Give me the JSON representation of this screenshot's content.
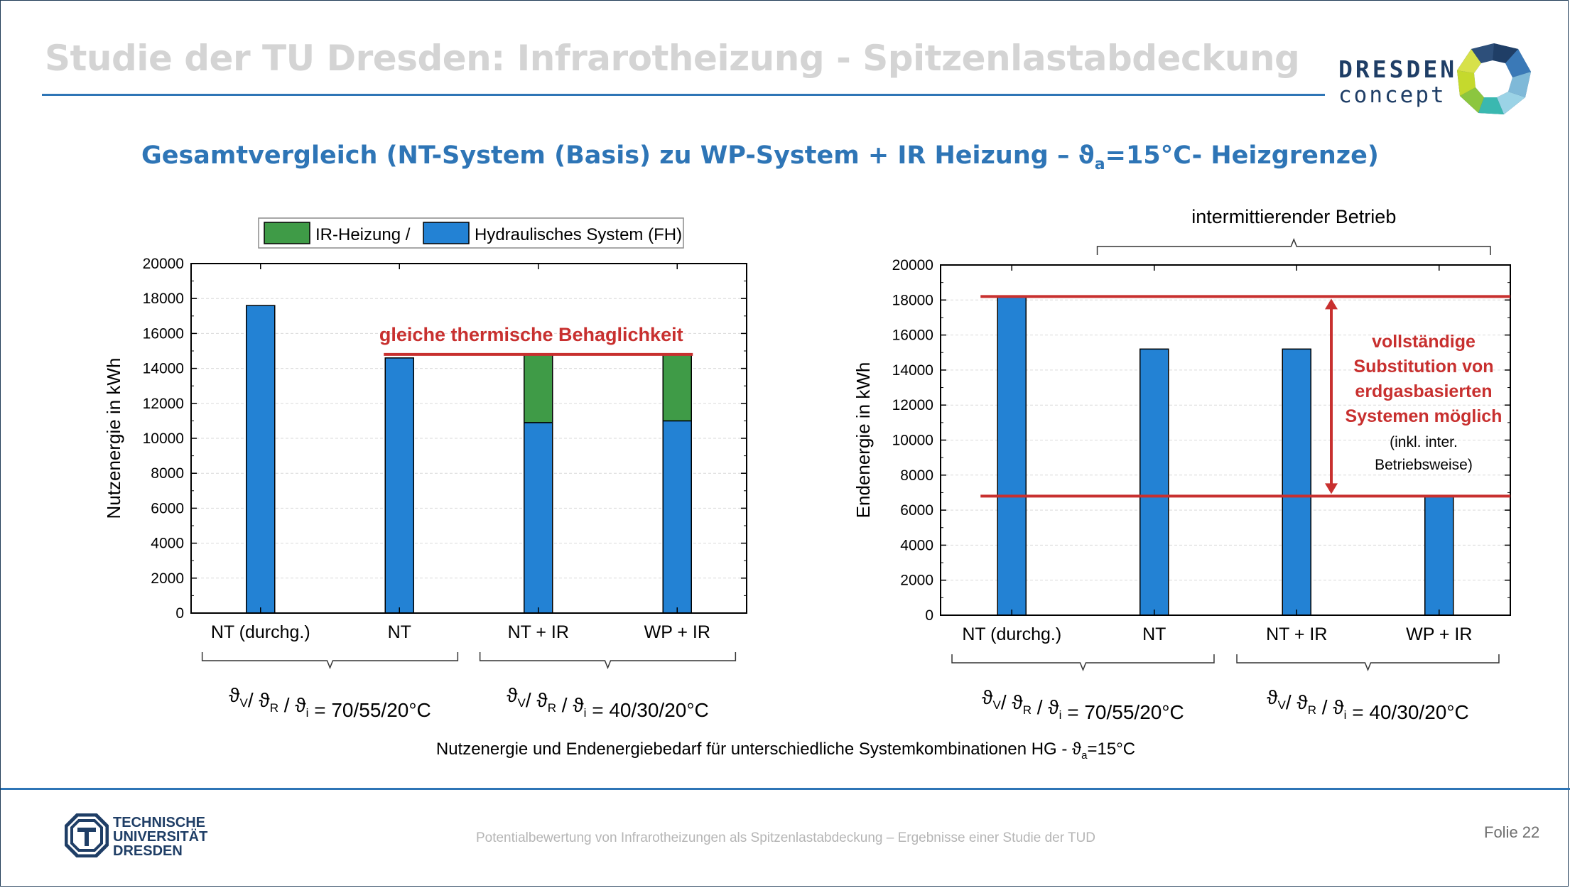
{
  "header": {
    "title": "Studie der TU Dresden: Infrarotheizung - Spitzenlastabdeckung"
  },
  "logo": {
    "line1": "DRESDEN",
    "line2": "concept"
  },
  "subtitle": {
    "main": "Gesamtvergleich (NT-System (Basis) zu WP-System + IR Heizung –  ϑ",
    "sub": "a",
    "tail": "=15°C- Heizgrenze)"
  },
  "colors": {
    "blue_bar": "#2382d4",
    "green_bar": "#3f9b47",
    "red_line": "#c8302f",
    "accent": "#2e75b6"
  },
  "chart_data": [
    {
      "type": "bar",
      "stacked": true,
      "categories": [
        "NT (durchg.)",
        "NT",
        "NT + IR",
        "WP + IR"
      ],
      "series": [
        {
          "name": "Hydraulisches System (FH)",
          "color": "#2382d4",
          "values": [
            17600,
            14600,
            10900,
            11000
          ]
        },
        {
          "name": "IR-Heizung /",
          "color": "#3f9b47",
          "values": [
            0,
            0,
            3900,
            3800
          ]
        }
      ],
      "ylabel": "Nutzenergie in kWh",
      "ylim": [
        0,
        20000
      ],
      "yticks": [
        0,
        2000,
        4000,
        6000,
        8000,
        10000,
        12000,
        14000,
        16000,
        18000,
        20000
      ],
      "ytick_labels": [
        "0",
        "2000",
        "4000",
        "6000",
        "8000",
        "10000",
        "12000",
        "14000",
        "16000",
        "18000",
        "20000"
      ],
      "grid": true,
      "legend": "top",
      "annotation": {
        "text": "gleiche thermische  Behaglichkeit",
        "line_y": 14800
      },
      "groups": [
        {
          "label": "ϑ",
          "parts": [
            "V",
            "R",
            "i"
          ],
          "value": "= 70/55/20°C"
        },
        {
          "label": "ϑ",
          "parts": [
            "V",
            "R",
            "i"
          ],
          "value": "= 40/30/20°C"
        }
      ]
    },
    {
      "type": "bar",
      "categories": [
        "NT (durchg.)",
        "NT",
        "NT + IR",
        "WP + IR"
      ],
      "series": [
        {
          "name": "Hydraulisches System (FH)",
          "color": "#2382d4",
          "values": [
            18200,
            15200,
            15200,
            6800
          ]
        }
      ],
      "ylabel": "Endenergie in kWh",
      "ylim": [
        0,
        20000
      ],
      "yticks": [
        0,
        2000,
        4000,
        6000,
        8000,
        10000,
        12000,
        14000,
        16000,
        18000,
        20000
      ],
      "ytick_labels": [
        "0",
        "2000",
        "4000",
        "6000",
        "8000",
        "10000",
        "12000",
        "14000",
        "16000",
        "18000",
        "20000"
      ],
      "grid": true,
      "top_label": "intermittierender Betrieb",
      "ref_lines": [
        18200,
        6800
      ],
      "annotation": {
        "bold_lines": [
          "vollständige",
          "Substitution von",
          "erdgasbasierten",
          "Systemen möglich"
        ],
        "normal_lines": [
          "(inkl. inter.",
          "Betriebsweise)"
        ]
      },
      "groups": [
        {
          "label": "ϑ",
          "parts": [
            "V",
            "R",
            "i"
          ],
          "value": "= 70/55/20°C"
        },
        {
          "label": "ϑ",
          "parts": [
            "V",
            "R",
            "i"
          ],
          "value": "= 40/30/20°C"
        }
      ]
    }
  ],
  "caption": {
    "main": "Nutzenergie und Endenergiebedarf für unterschiedliche Systemkombinationen HG - ϑ",
    "sub": "a",
    "tail": "=15°C"
  },
  "footer": {
    "text": "Potentialbewertung von Infrarotheizungen als Spitzenlastabdeckung – Ergebnisse einer Studie der TUD",
    "folie": "Folie 22",
    "tud_lines": [
      "TECHNISCHE",
      "UNIVERSITÄT",
      "DRESDEN"
    ]
  }
}
